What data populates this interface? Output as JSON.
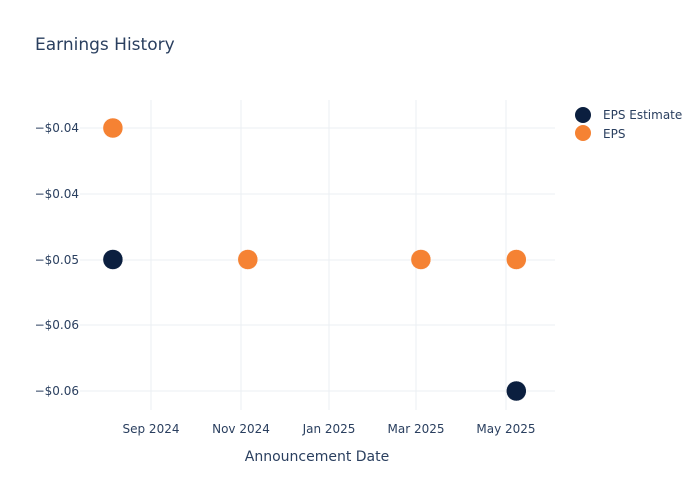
{
  "chart_data": {
    "type": "scatter",
    "title": "Earnings History",
    "xlabel": "Announcement Date",
    "ylabel": "",
    "x_tick_labels": [
      "Sep 2024",
      "Nov 2024",
      "Jan 2025",
      "Mar 2025",
      "May 2025"
    ],
    "y_tick_labels": [
      "−$0.04",
      "−$0.04",
      "−$0.05",
      "−$0.06",
      "−$0.06"
    ],
    "y_tick_values": [
      -0.04,
      -0.045,
      -0.05,
      -0.055,
      -0.06
    ],
    "x": [
      "2024-08-06",
      "2024-11-06",
      "2025-03-04",
      "2025-05-08"
    ],
    "series": [
      {
        "name": "EPS Estimate",
        "color": "#0b1f3f",
        "values": [
          -0.05,
          -0.05,
          -0.05,
          -0.06
        ]
      },
      {
        "name": "EPS",
        "color": "#f58233",
        "values": [
          -0.04,
          -0.05,
          -0.05,
          -0.05
        ]
      }
    ],
    "grid": true,
    "legend_position": "top-right"
  }
}
